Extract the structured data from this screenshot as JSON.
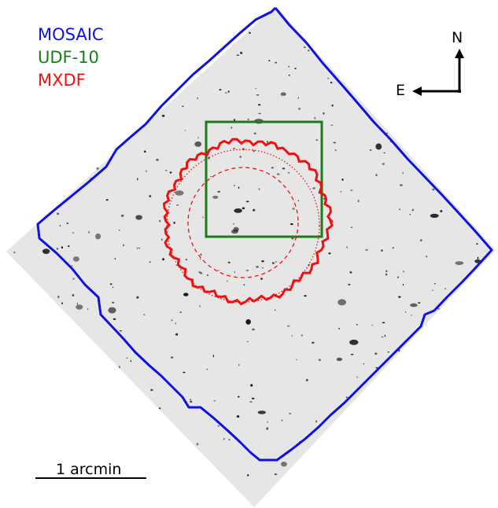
{
  "legend": [
    {
      "label": "MOSAIC",
      "color": "#1010e0"
    },
    {
      "label": "UDF-10",
      "color": "#1a7d1a"
    },
    {
      "label": "MXDF",
      "color": "#ee1111"
    }
  ],
  "compass": {
    "north": "N",
    "east": "E"
  },
  "scale_bar": {
    "label": "1 arcmin"
  },
  "image": {
    "description_icon": "deep-field-galaxy-image",
    "background_color": "#e6e6e6"
  }
}
